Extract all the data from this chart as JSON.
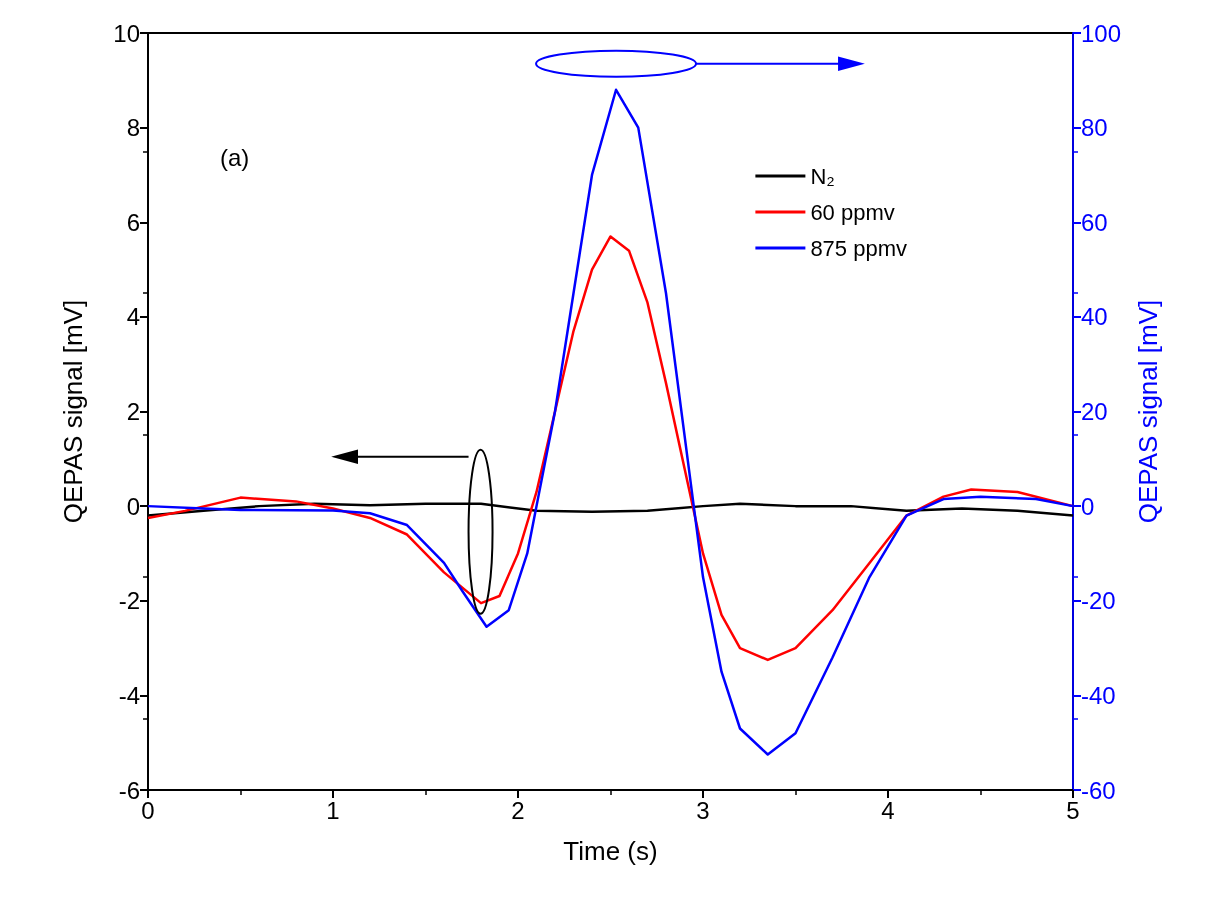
{
  "chart_data": {
    "type": "line",
    "xlabel": "Time (s)",
    "ylabel": "QEPAS signal [mV]",
    "y2label": "QEPAS signal [mV]",
    "xlim": [
      0,
      5
    ],
    "xticks": [
      0,
      1,
      2,
      3,
      4,
      5
    ],
    "ylim": [
      -6,
      10
    ],
    "yticks": [
      -6,
      -4,
      -2,
      0,
      2,
      4,
      6,
      8,
      10
    ],
    "y2lim": [
      -60,
      100
    ],
    "y2ticks": [
      -60,
      -40,
      -20,
      0,
      20,
      40,
      60,
      80,
      100
    ],
    "grid": false,
    "legend": "top right",
    "marker": "none",
    "line_style": "solid",
    "annotations": [
      "(a)"
    ],
    "series": [
      {
        "name": "N₂",
        "color": "#000000",
        "x": [
          0,
          0.3,
          0.6,
          0.9,
          1.2,
          1.5,
          1.8,
          2.1,
          2.4,
          2.7,
          3.0,
          3.2,
          3.5,
          3.8,
          4.1,
          4.4,
          4.7,
          5.0
        ],
        "values": [
          -0.2,
          -0.1,
          0,
          0.05,
          0.02,
          0.05,
          0.05,
          -0.1,
          -0.12,
          -0.1,
          0,
          0.05,
          0,
          0,
          -0.1,
          -0.05,
          -0.1,
          -0.2
        ]
      },
      {
        "name": "60 ppmv",
        "color": "#ff0000",
        "x": [
          0,
          0.2,
          0.5,
          0.8,
          1.0,
          1.2,
          1.4,
          1.6,
          1.8,
          1.9,
          2.0,
          2.1,
          2.2,
          2.3,
          2.4,
          2.5,
          2.6,
          2.7,
          2.8,
          2.9,
          3.0,
          3.1,
          3.2,
          3.35,
          3.5,
          3.7,
          3.9,
          4.1,
          4.3,
          4.45,
          4.7,
          5.0
        ],
        "values": [
          -0.25,
          -0.1,
          0.18,
          0.1,
          -0.05,
          -0.25,
          -0.6,
          -1.4,
          -2.05,
          -1.9,
          -1.0,
          0.3,
          2.0,
          3.7,
          5.0,
          5.7,
          5.4,
          4.3,
          2.6,
          0.8,
          -1.0,
          -2.3,
          -3.0,
          -3.25,
          -3.0,
          -2.2,
          -1.2,
          -0.2,
          0.2,
          0.35,
          0.3,
          0.0
        ]
      },
      {
        "name": "875 ppmv",
        "color": "#0000ff",
        "axis": "y2",
        "x": [
          0,
          0.3,
          0.5,
          1.0,
          1.2,
          1.4,
          1.6,
          1.7,
          1.83,
          1.95,
          2.05,
          2.1,
          2.2,
          2.3,
          2.4,
          2.53,
          2.65,
          2.8,
          2.9,
          3.0,
          3.1,
          3.2,
          3.35,
          3.5,
          3.7,
          3.9,
          4.1,
          4.3,
          4.5,
          4.8,
          5.0
        ],
        "values": [
          0,
          -0.5,
          -0.8,
          -0.9,
          -1.5,
          -4,
          -12,
          -18,
          -25.5,
          -22,
          -10,
          0,
          20,
          45,
          70,
          88,
          80,
          45,
          15,
          -15,
          -35,
          -47,
          -52.5,
          -48,
          -32,
          -15,
          -2,
          1.5,
          2,
          1.5,
          0
        ]
      }
    ]
  }
}
